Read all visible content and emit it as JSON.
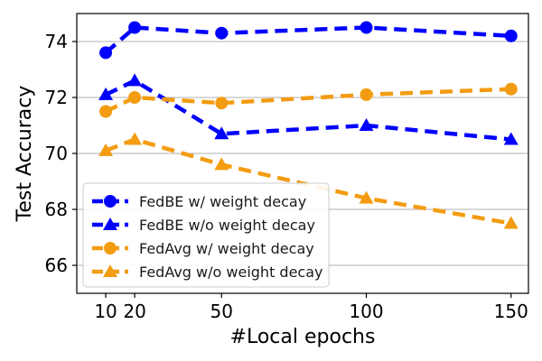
{
  "chart_data": {
    "type": "line",
    "xlabel": "#Local epochs",
    "ylabel": "Test Accuracy",
    "x": [
      10,
      20,
      50,
      100,
      150
    ],
    "xticks": [
      "10",
      "20",
      "50",
      "100",
      "150"
    ],
    "yticks": [
      "66",
      "68",
      "70",
      "72",
      "74"
    ],
    "xlim": [
      0,
      156
    ],
    "ylim": [
      65,
      75
    ],
    "grid": "horizontal",
    "legend_position": "bottom-left",
    "series": [
      {
        "name": "FedBE w/ weight decay",
        "color": "#0000ff",
        "marker": "circle",
        "values": [
          73.6,
          74.5,
          74.3,
          74.5,
          74.2
        ]
      },
      {
        "name": "FedBE w/o weight decay",
        "color": "#0000ff",
        "marker": "triangle",
        "values": [
          72.1,
          72.6,
          70.7,
          71.0,
          70.5
        ]
      },
      {
        "name": "FedAvg w/ weight decay",
        "color": "#f39c12",
        "marker": "circle",
        "values": [
          71.5,
          72.0,
          71.8,
          72.1,
          72.3
        ]
      },
      {
        "name": "FedAvg w/o weight decay",
        "color": "#f39c12",
        "marker": "triangle",
        "values": [
          70.1,
          70.5,
          69.6,
          68.4,
          67.5
        ]
      }
    ]
  }
}
